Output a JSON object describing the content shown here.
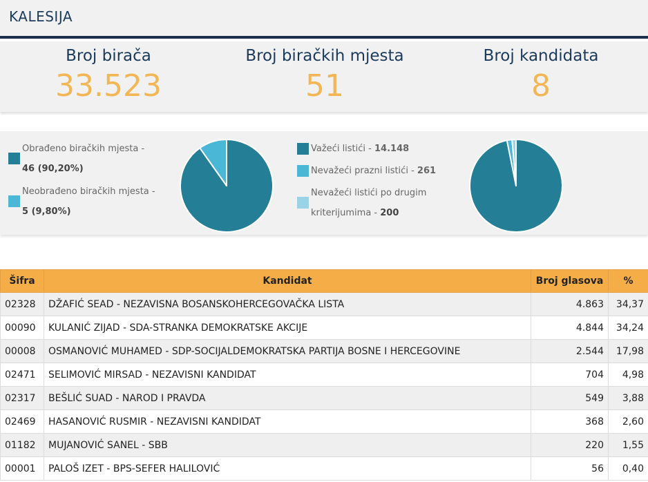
{
  "header": {
    "title": "KALESIJA"
  },
  "stats": [
    {
      "label": "Broj birača",
      "value": "33.523"
    },
    {
      "label": "Broj biračkih mjesta",
      "value": "51"
    },
    {
      "label": "Broj kandidata",
      "value": "8"
    }
  ],
  "chart_data": [
    {
      "type": "pie",
      "categories": [
        "Obrađeno biračkih mjesta",
        "Neobrađeno biračkih mjesta"
      ],
      "values": [
        46,
        5
      ],
      "percent_labels": [
        "90,20%",
        "9,80%"
      ],
      "colors": [
        "#237e96",
        "#4bb7d6"
      ],
      "legend_lines": [
        {
          "label": "Obrađeno biračkih mjesta -",
          "value": "46 (90,20%)"
        },
        {
          "label": "Neobrađeno biračkih mjesta -",
          "value": "5 (9,80%)"
        }
      ]
    },
    {
      "type": "pie",
      "categories": [
        "Važeći listići",
        "Nevažeći prazni listići",
        "Nevažeći listići po drugim kriterijumima"
      ],
      "values": [
        14148,
        261,
        200
      ],
      "colors": [
        "#237e96",
        "#4bb7d6",
        "#9ad3e6"
      ],
      "legend_lines": [
        {
          "label": "Važeći listići -",
          "value": "14.148"
        },
        {
          "label": "Nevažeći prazni listići -",
          "value": "261"
        },
        {
          "label": "Nevažeći listići po drugim",
          "label2": "kriterijumima -",
          "value": "200"
        }
      ]
    },
    {
      "type": "table",
      "columns": [
        "Šifra",
        "Kandidat",
        "Broj glasova",
        "%"
      ],
      "rows": [
        [
          "02328",
          "DŽAFIĆ SEAD - NEZAVISNA BOSANSKOHERCEGOVAČKA LISTA",
          "4.863",
          "34,37"
        ],
        [
          "00090",
          "KULANIĆ ZIJAD - SDA-STRANKA DEMOKRATSKE AKCIJE",
          "4.844",
          "34,24"
        ],
        [
          "00008",
          "OSMANOVIĆ MUHAMED - SDP-SOCIJALDEMOKRATSKA PARTIJA BOSNE I HERCEGOVINE",
          "2.544",
          "17,98"
        ],
        [
          "02471",
          "SELIMOVIĆ MIRSAD - NEZAVISNI KANDIDAT",
          "704",
          "4,98"
        ],
        [
          "02317",
          "BEŠLIĆ SUAD - NAROD I PRAVDA",
          "549",
          "3,88"
        ],
        [
          "02469",
          "HASANOVIĆ RUSMIR - NEZAVISNI KANDIDAT",
          "368",
          "2,60"
        ],
        [
          "01182",
          "MUJANOVIĆ SANEL - SBB",
          "220",
          "1,55"
        ],
        [
          "00001",
          "PALOŠ IZET - BPS-SEFER HALILOVIĆ",
          "56",
          "0,40"
        ]
      ]
    }
  ]
}
